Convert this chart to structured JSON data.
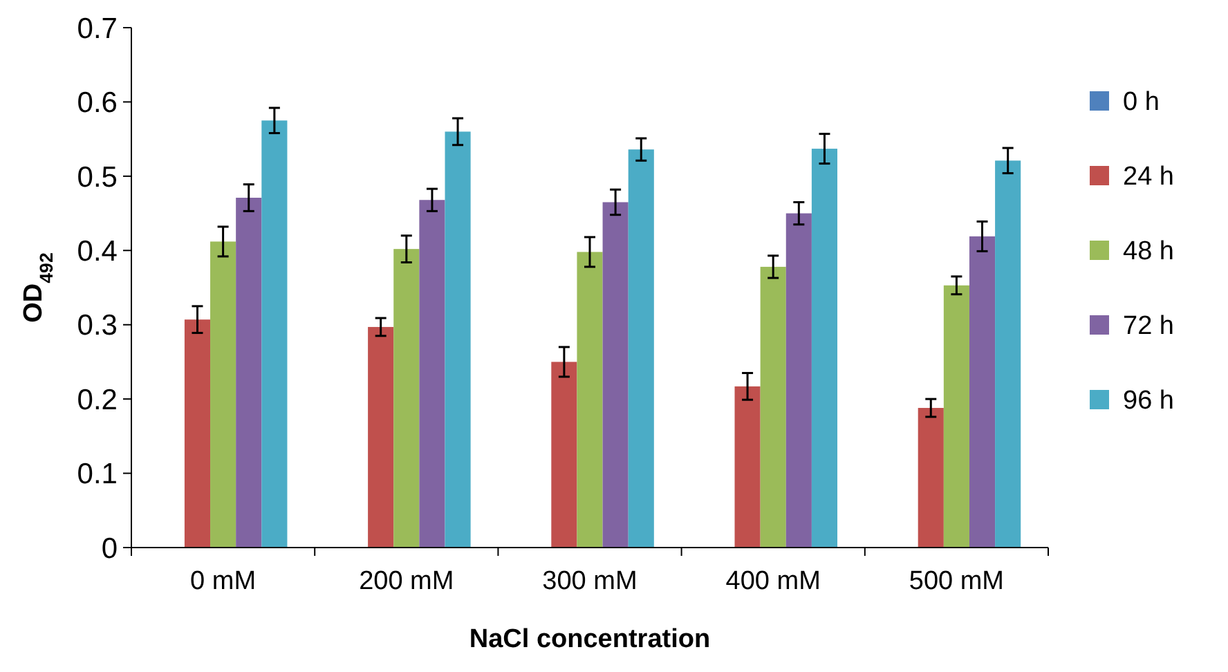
{
  "chart_data": {
    "type": "bar",
    "xlabel": "NaCl concentration",
    "ylabel": "OD$_{492}$",
    "categories": [
      "0 mM",
      "200 mM",
      "300 mM",
      "400 mM",
      "500 mM"
    ],
    "series": [
      {
        "name": "0 h",
        "color": "#4f81bd",
        "values": [
          0,
          0,
          0,
          0,
          0
        ]
      },
      {
        "name": "24 h",
        "color": "#c0504d",
        "values": [
          0.307,
          0.297,
          0.25,
          0.217,
          0.188
        ],
        "errors": [
          0.018,
          0.012,
          0.02,
          0.018,
          0.012
        ]
      },
      {
        "name": "48 h",
        "color": "#9bbb59",
        "values": [
          0.412,
          0.402,
          0.398,
          0.378,
          0.353
        ],
        "errors": [
          0.02,
          0.018,
          0.02,
          0.015,
          0.012
        ]
      },
      {
        "name": "72 h",
        "color": "#8064a2",
        "values": [
          0.471,
          0.468,
          0.465,
          0.45,
          0.419
        ],
        "errors": [
          0.018,
          0.015,
          0.017,
          0.015,
          0.02
        ]
      },
      {
        "name": "96 h",
        "color": "#4bacc6",
        "values": [
          0.575,
          0.56,
          0.536,
          0.537,
          0.521
        ],
        "errors": [
          0.017,
          0.018,
          0.015,
          0.02,
          0.017
        ]
      }
    ],
    "ylim": [
      0,
      0.7
    ],
    "yticks": [
      0,
      0.1,
      0.2,
      0.3,
      0.4,
      0.5,
      0.6,
      0.7
    ],
    "legend": "right"
  }
}
